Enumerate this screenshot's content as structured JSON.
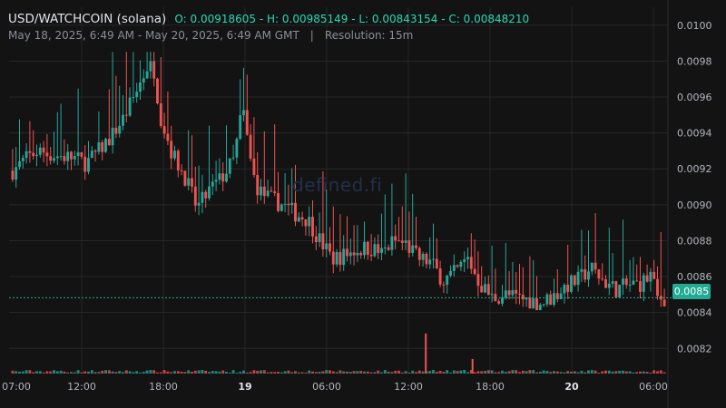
{
  "header": {
    "pair": "USD/WATCHCOIN (solana)",
    "ohlc": "O: 0.00918605 - H: 0.00985149 - L: 0.00843154 - C: 0.00848210",
    "range": "May 18, 2025, 6:49 AM - May 20, 2025, 6:49 AM GMT",
    "separator": "|",
    "resolution": "Resolution: 15m"
  },
  "watermark": "defined.fi",
  "colors": {
    "background": "#131313",
    "grid": "#262626",
    "up": "#26a69a",
    "down": "#ef5350",
    "price_label": "#22ab94",
    "axis_text": "#b2b5be"
  },
  "chart_data": {
    "type": "candlestick",
    "y_ticks": [
      "0.0100",
      "0.0098",
      "0.0096",
      "0.0094",
      "0.0092",
      "0.0090",
      "0.0088",
      "0.0086",
      "0.0084",
      "0.0082"
    ],
    "x_ticks": [
      "07:00",
      "12:00",
      "18:00",
      "19",
      "06:00",
      "12:00",
      "18:00",
      "20",
      "06:00"
    ],
    "ylim": [
      0.00806,
      0.0101
    ],
    "current_price": 0.0084821,
    "current_price_label": "0.0085",
    "high": 0.00985149,
    "low": 0.00843154,
    "close_path": [
      [
        0,
        0.00919
      ],
      [
        1,
        0.00925
      ],
      [
        2,
        0.0093
      ],
      [
        3,
        0.00928
      ],
      [
        4,
        0.00927
      ],
      [
        5,
        0.00926
      ],
      [
        6,
        0.00923
      ],
      [
        7,
        0.0093
      ],
      [
        8,
        0.00938
      ],
      [
        9,
        0.00948
      ],
      [
        10,
        0.00962
      ],
      [
        11,
        0.00978
      ],
      [
        11.5,
        0.00975
      ],
      [
        12,
        0.0095
      ],
      [
        13,
        0.00928
      ],
      [
        14,
        0.00916
      ],
      [
        15,
        0.00898
      ],
      [
        16,
        0.00908
      ],
      [
        17,
        0.00915
      ],
      [
        18,
        0.00925
      ],
      [
        18.7,
        0.00955
      ],
      [
        19,
        0.0094
      ],
      [
        19.5,
        0.00918
      ],
      [
        20,
        0.00908
      ],
      [
        21,
        0.00903
      ],
      [
        22,
        0.009
      ],
      [
        23,
        0.00895
      ],
      [
        24,
        0.00892
      ],
      [
        25,
        0.0088
      ],
      [
        26,
        0.0087
      ],
      [
        27,
        0.00872
      ],
      [
        28,
        0.00875
      ],
      [
        29,
        0.00876
      ],
      [
        30,
        0.00873
      ],
      [
        31,
        0.0088
      ],
      [
        32,
        0.00878
      ],
      [
        33,
        0.0087
      ],
      [
        34,
        0.00868
      ],
      [
        35,
        0.00858
      ],
      [
        36,
        0.00862
      ],
      [
        37,
        0.0087
      ],
      [
        38,
        0.00856
      ],
      [
        39,
        0.00848
      ],
      [
        40,
        0.0085
      ],
      [
        41,
        0.00848
      ],
      [
        42,
        0.00847
      ],
      [
        43,
        0.00845
      ],
      [
        44,
        0.00849
      ],
      [
        45,
        0.00855
      ],
      [
        46,
        0.00858
      ],
      [
        47,
        0.00865
      ],
      [
        48,
        0.00858
      ],
      [
        49,
        0.00853
      ],
      [
        50,
        0.00855
      ],
      [
        51,
        0.00856
      ],
      [
        51.5,
        0.00858
      ],
      [
        52,
        0.00862
      ],
      [
        52.3,
        0.00848
      ],
      [
        53,
        0.00848
      ]
    ],
    "volume_spikes": [
      [
        33.6,
        0.55
      ],
      [
        37.4,
        0.2
      ]
    ]
  }
}
